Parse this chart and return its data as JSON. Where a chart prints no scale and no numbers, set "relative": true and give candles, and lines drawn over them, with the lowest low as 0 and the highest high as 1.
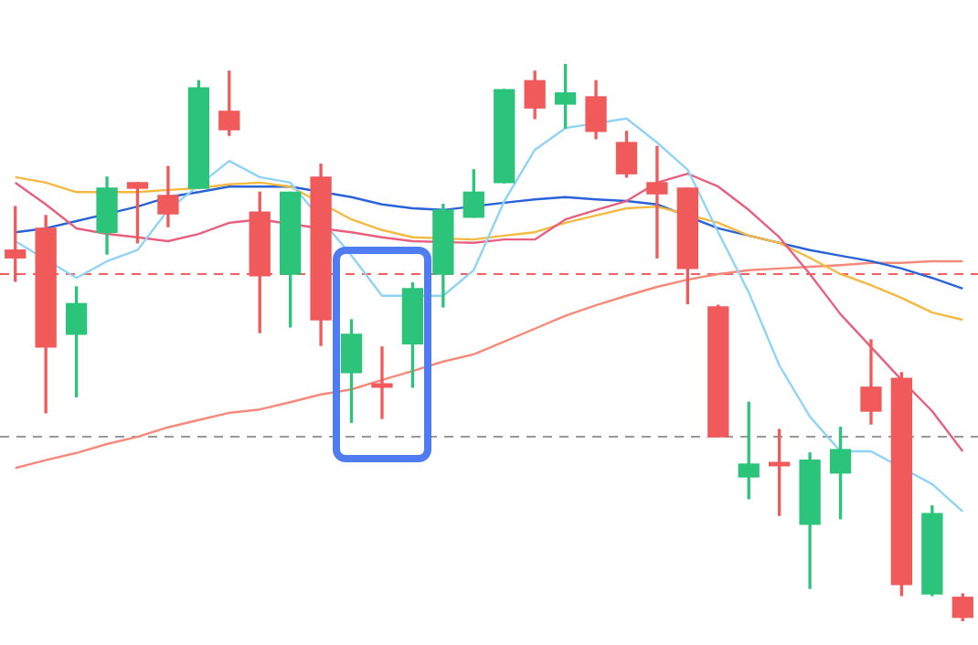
{
  "chart_data": {
    "type": "candlestick",
    "relative": true,
    "categories": [
      null,
      null,
      null,
      null,
      null,
      null,
      null,
      null,
      null,
      null,
      null,
      null,
      null,
      null,
      null,
      null,
      null,
      null,
      null,
      null,
      null,
      null,
      null,
      null,
      null,
      null,
      null,
      null,
      null,
      null,
      null,
      null
    ],
    "ohlc": [
      [
        0.666,
        0.744,
        0.61,
        0.652
      ],
      [
        0.705,
        0.728,
        0.374,
        0.492
      ],
      [
        0.515,
        0.6,
        0.403,
        0.57
      ],
      [
        0.698,
        0.797,
        0.659,
        0.777
      ],
      [
        0.787,
        0.787,
        0.679,
        0.777
      ],
      [
        0.764,
        0.816,
        0.708,
        0.731
      ],
      [
        0.777,
        0.97,
        0.777,
        0.957
      ],
      [
        0.915,
        0.987,
        0.872,
        0.882
      ],
      [
        0.734,
        0.77,
        0.518,
        0.62
      ],
      [
        0.623,
        0.77,
        0.528,
        0.77
      ],
      [
        0.797,
        0.82,
        0.495,
        0.541
      ],
      [
        0.446,
        0.541,
        0.357,
        0.515
      ],
      [
        0.426,
        0.492,
        0.364,
        0.42
      ],
      [
        0.498,
        0.607,
        0.42,
        0.597
      ],
      [
        0.623,
        0.748,
        0.564,
        0.738
      ],
      [
        0.725,
        0.81,
        0.725,
        0.77
      ],
      [
        0.787,
        0.954,
        0.787,
        0.954
      ],
      [
        0.97,
        0.987,
        0.902,
        0.921
      ],
      [
        0.928,
        1,
        0.885,
        0.948
      ],
      [
        0.941,
        0.97,
        0.866,
        0.879
      ],
      [
        0.859,
        0.879,
        0.797,
        0.803
      ],
      [
        0.787,
        0.852,
        0.652,
        0.767
      ],
      [
        0.777,
        0.777,
        0.57,
        0.633
      ],
      [
        0.564,
        0.567,
        0.331,
        0.331
      ],
      [
        0.259,
        0.393,
        0.22,
        0.282
      ],
      [
        0.285,
        0.344,
        0.19,
        0.279
      ],
      [
        0.174,
        0.302,
        0.059,
        0.289
      ],
      [
        0.266,
        0.348,
        0.184,
        0.308
      ],
      [
        0.42,
        0.505,
        0.354,
        0.377
      ],
      [
        0.436,
        0.446,
        0.046,
        0.066
      ],
      [
        0.049,
        0.207,
        0.046,
        0.193
      ],
      [
        0.043,
        0.049,
        0,
        0.007
      ]
    ],
    "colors": [
      "#f05a5a",
      "#f05a5a",
      "#2bc47a",
      "#2bc47a",
      "#f05a5a",
      "#f05a5a",
      "#2bc47a",
      "#f05a5a",
      "#f05a5a",
      "#2bc47a",
      "#f05a5a",
      "#2bc47a",
      "#f05a5a",
      "#2bc47a",
      "#2bc47a",
      "#2bc47a",
      "#2bc47a",
      "#f05a5a",
      "#2bc47a",
      "#f05a5a",
      "#f05a5a",
      "#f05a5a",
      "#f05a5a",
      "#f05a5a",
      "#2bc47a",
      "#f05a5a",
      "#2bc47a",
      "#2bc47a",
      "#f05a5a",
      "#f05a5a",
      "#2bc47a",
      "#f05a5a"
    ],
    "series": [
      {
        "type": "line",
        "color": "#8fd3f5",
        "values": [
          0.682,
          null,
          0.616,
          0.646,
          0.666,
          0.738,
          null,
          0.826,
          0.797,
          0.787,
          null,
          0.656,
          0.584,
          null,
          0.584,
          0.63,
          0.754,
          0.846,
          0.885,
          null,
          0.902,
          0.859,
          0.81,
          0.698,
          0.59,
          0.459,
          0.367,
          0.305,
          0.305,
          null,
          0.246,
          0.197
        ]
      },
      {
        "type": "line",
        "color": "#e8607f",
        "values": [
          0.787,
          0.748,
          0.705,
          0.695,
          0.689,
          0.682,
          0.695,
          0.715,
          0.721,
          null,
          0.705,
          0.698,
          0.689,
          0.682,
          null,
          0.679,
          0.685,
          0.685,
          0.721,
          0.738,
          0.754,
          0.787,
          0.803,
          0.78,
          0.738,
          0.689,
          0.623,
          0.551,
          0.492,
          0.433,
          0.377,
          0.305
        ]
      },
      {
        "type": "line",
        "color": "#f5b942",
        "values": [
          0.797,
          0.787,
          0.77,
          null,
          0.77,
          0.774,
          0.777,
          0.784,
          0.787,
          0.78,
          null,
          0.721,
          0.702,
          0.689,
          null,
          0.685,
          0.692,
          0.698,
          0.715,
          0.728,
          0.741,
          0.744,
          null,
          0.715,
          0.692,
          0.679,
          0.652,
          0.623,
          0.603,
          0.58,
          0.554,
          0.541
        ]
      },
      {
        "type": "line",
        "color": "#2962d9",
        "values": [
          0.698,
          0.705,
          0.718,
          0.731,
          0.744,
          0.761,
          0.77,
          0.78,
          0.78,
          0.78,
          null,
          0.761,
          0.748,
          0.741,
          0.738,
          null,
          0.751,
          0.757,
          0.761,
          0.757,
          0.754,
          0.748,
          null,
          0.705,
          0.692,
          0.679,
          0.666,
          0.656,
          0.646,
          0.633,
          0.616,
          0.597
        ]
      },
      {
        "type": "line",
        "color": "#f58a7a",
        "values": [
          0.275,
          0.289,
          0.302,
          0.318,
          0.331,
          0.348,
          0.361,
          0.374,
          0.38,
          0.393,
          0.407,
          0.416,
          0.433,
          0.449,
          0.466,
          0.479,
          0.502,
          0.525,
          0.548,
          0.567,
          0.584,
          0.6,
          0.613,
          0.623,
          0.63,
          0.633,
          0.636,
          0.639,
          0.643,
          0.643,
          0.646,
          0.646
        ]
      }
    ],
    "ref_lines": [
      {
        "axis": "y",
        "value": 0.623,
        "color": "#f06060",
        "line_style": "dashed"
      },
      {
        "axis": "y",
        "value": 0.331,
        "color": "#999999",
        "line_style": "dashed"
      }
    ],
    "marker": "none",
    "line_style": "solid",
    "legend": false
  }
}
